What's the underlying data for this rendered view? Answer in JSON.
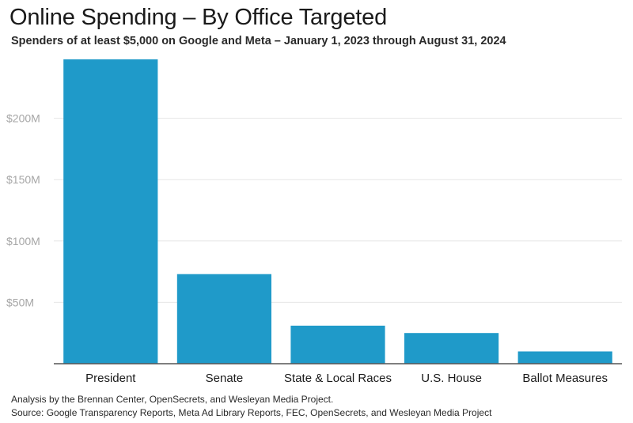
{
  "chart_data": {
    "type": "bar",
    "title": "Online Spending – By Office Targeted",
    "subtitle": "Spenders of at least $5,000 on Google and Meta – January 1, 2023 through August 31, 2024",
    "categories": [
      "President",
      "Senate",
      "State & Local Races",
      "U.S. House",
      "Ballot Measures"
    ],
    "values": [
      248,
      73,
      31,
      25,
      10
    ],
    "ytick_values": [
      50,
      100,
      150,
      200
    ],
    "ytick_labels": [
      "$50M",
      "$100M",
      "$150M",
      "$200M"
    ],
    "ylim": [
      0,
      250
    ],
    "grid": true,
    "bar_color": "#1f9ac9",
    "grid_color": "#e6e6e6",
    "axis_color": "#555555"
  },
  "footer": {
    "analysis": "Analysis by the Brennan Center, OpenSecrets, and Wesleyan Media Project.",
    "source": "Source: Google Transparency Reports, Meta Ad Library Reports, FEC, OpenSecrets, and Wesleyan Media Project"
  }
}
